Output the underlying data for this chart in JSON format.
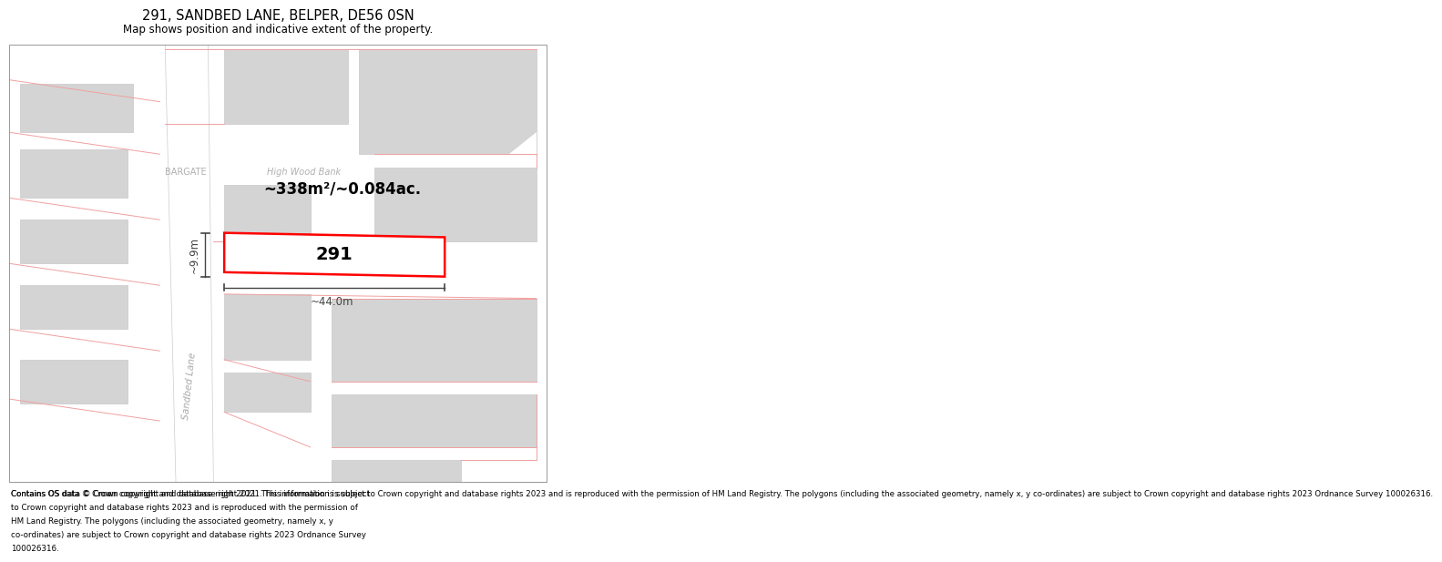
{
  "title_line1": "291, SANDBED LANE, BELPER, DE56 0SN",
  "title_line2": "Map shows position and indicative extent of the property.",
  "footer_text": "Contains OS data © Crown copyright and database right 2021. This information is subject to Crown copyright and database rights 2023 and is reproduced with the permission of HM Land Registry. The polygons (including the associated geometry, namely x, y co-ordinates) are subject to Crown copyright and database rights 2023 Ordnance Survey 100026316.",
  "area_label": "~338m²/~0.084ac.",
  "property_number": "291",
  "dim_width": "~44.0m",
  "dim_height": "~9.9m",
  "bg_color": "#ffffff",
  "map_bg": "#ffffff",
  "building_fill": "#d4d4d4",
  "building_stroke": "#c8c8c8",
  "road_fill": "#ffffff",
  "property_stroke": "#ff0000",
  "property_fill": "#ffffff",
  "dim_color": "#444444",
  "text_color": "#000000",
  "pink_line": "#f0a0a0",
  "street_label": "Sandbed Lane",
  "bargate_label": "BARGATE",
  "highwood_label": "High Wood Bank"
}
